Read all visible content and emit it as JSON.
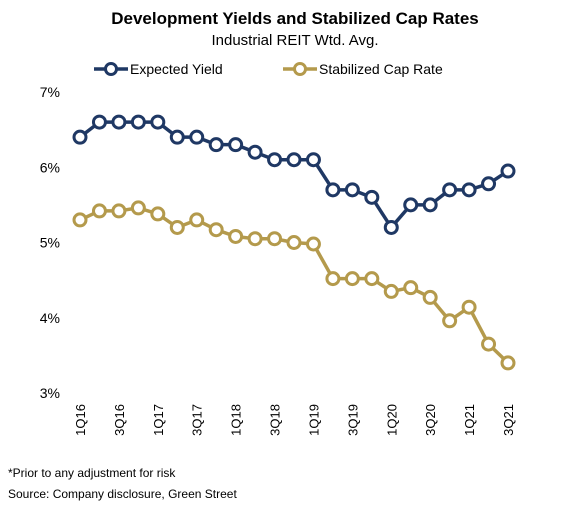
{
  "chart_data": {
    "type": "line",
    "title": "Development Yields and Stabilized Cap Rates",
    "subtitle": "Industrial REIT Wtd. Avg.",
    "x": [
      "1Q16",
      "2Q16",
      "3Q16",
      "4Q16",
      "1Q17",
      "2Q17",
      "3Q17",
      "4Q17",
      "1Q18",
      "2Q18",
      "3Q18",
      "4Q18",
      "1Q19",
      "2Q19",
      "3Q19",
      "4Q19",
      "1Q20",
      "2Q20",
      "3Q20",
      "4Q20",
      "1Q21",
      "2Q21",
      "3Q21"
    ],
    "x_tick_labels": [
      "1Q16",
      "3Q16",
      "1Q17",
      "3Q17",
      "1Q18",
      "3Q18",
      "1Q19",
      "3Q19",
      "1Q20",
      "3Q20",
      "1Q21",
      "3Q21"
    ],
    "yticks": [
      "3%",
      "4%",
      "5%",
      "6%",
      "7%"
    ],
    "ylim": [
      3,
      7
    ],
    "grid": false,
    "legend_position": "top",
    "series": [
      {
        "name": "Expected Yield",
        "color": "#1f3864",
        "values": [
          6.4,
          6.6,
          6.6,
          6.6,
          6.6,
          6.4,
          6.4,
          6.3,
          6.3,
          6.2,
          6.1,
          6.1,
          6.1,
          5.7,
          5.7,
          5.6,
          5.2,
          5.5,
          5.5,
          5.7,
          5.7,
          5.78,
          5.95
        ]
      },
      {
        "name": "Stabilized Cap Rate",
        "color": "#b49a4c",
        "values": [
          5.3,
          5.42,
          5.42,
          5.46,
          5.38,
          5.2,
          5.3,
          5.17,
          5.08,
          5.05,
          5.05,
          5.0,
          4.98,
          4.52,
          4.52,
          4.52,
          4.35,
          4.4,
          4.27,
          3.96,
          4.14,
          3.65,
          3.4
        ]
      }
    ]
  },
  "notes": {
    "footnote": "*Prior to any adjustment for risk",
    "source": "Source:  Company disclosure, Green Street"
  }
}
